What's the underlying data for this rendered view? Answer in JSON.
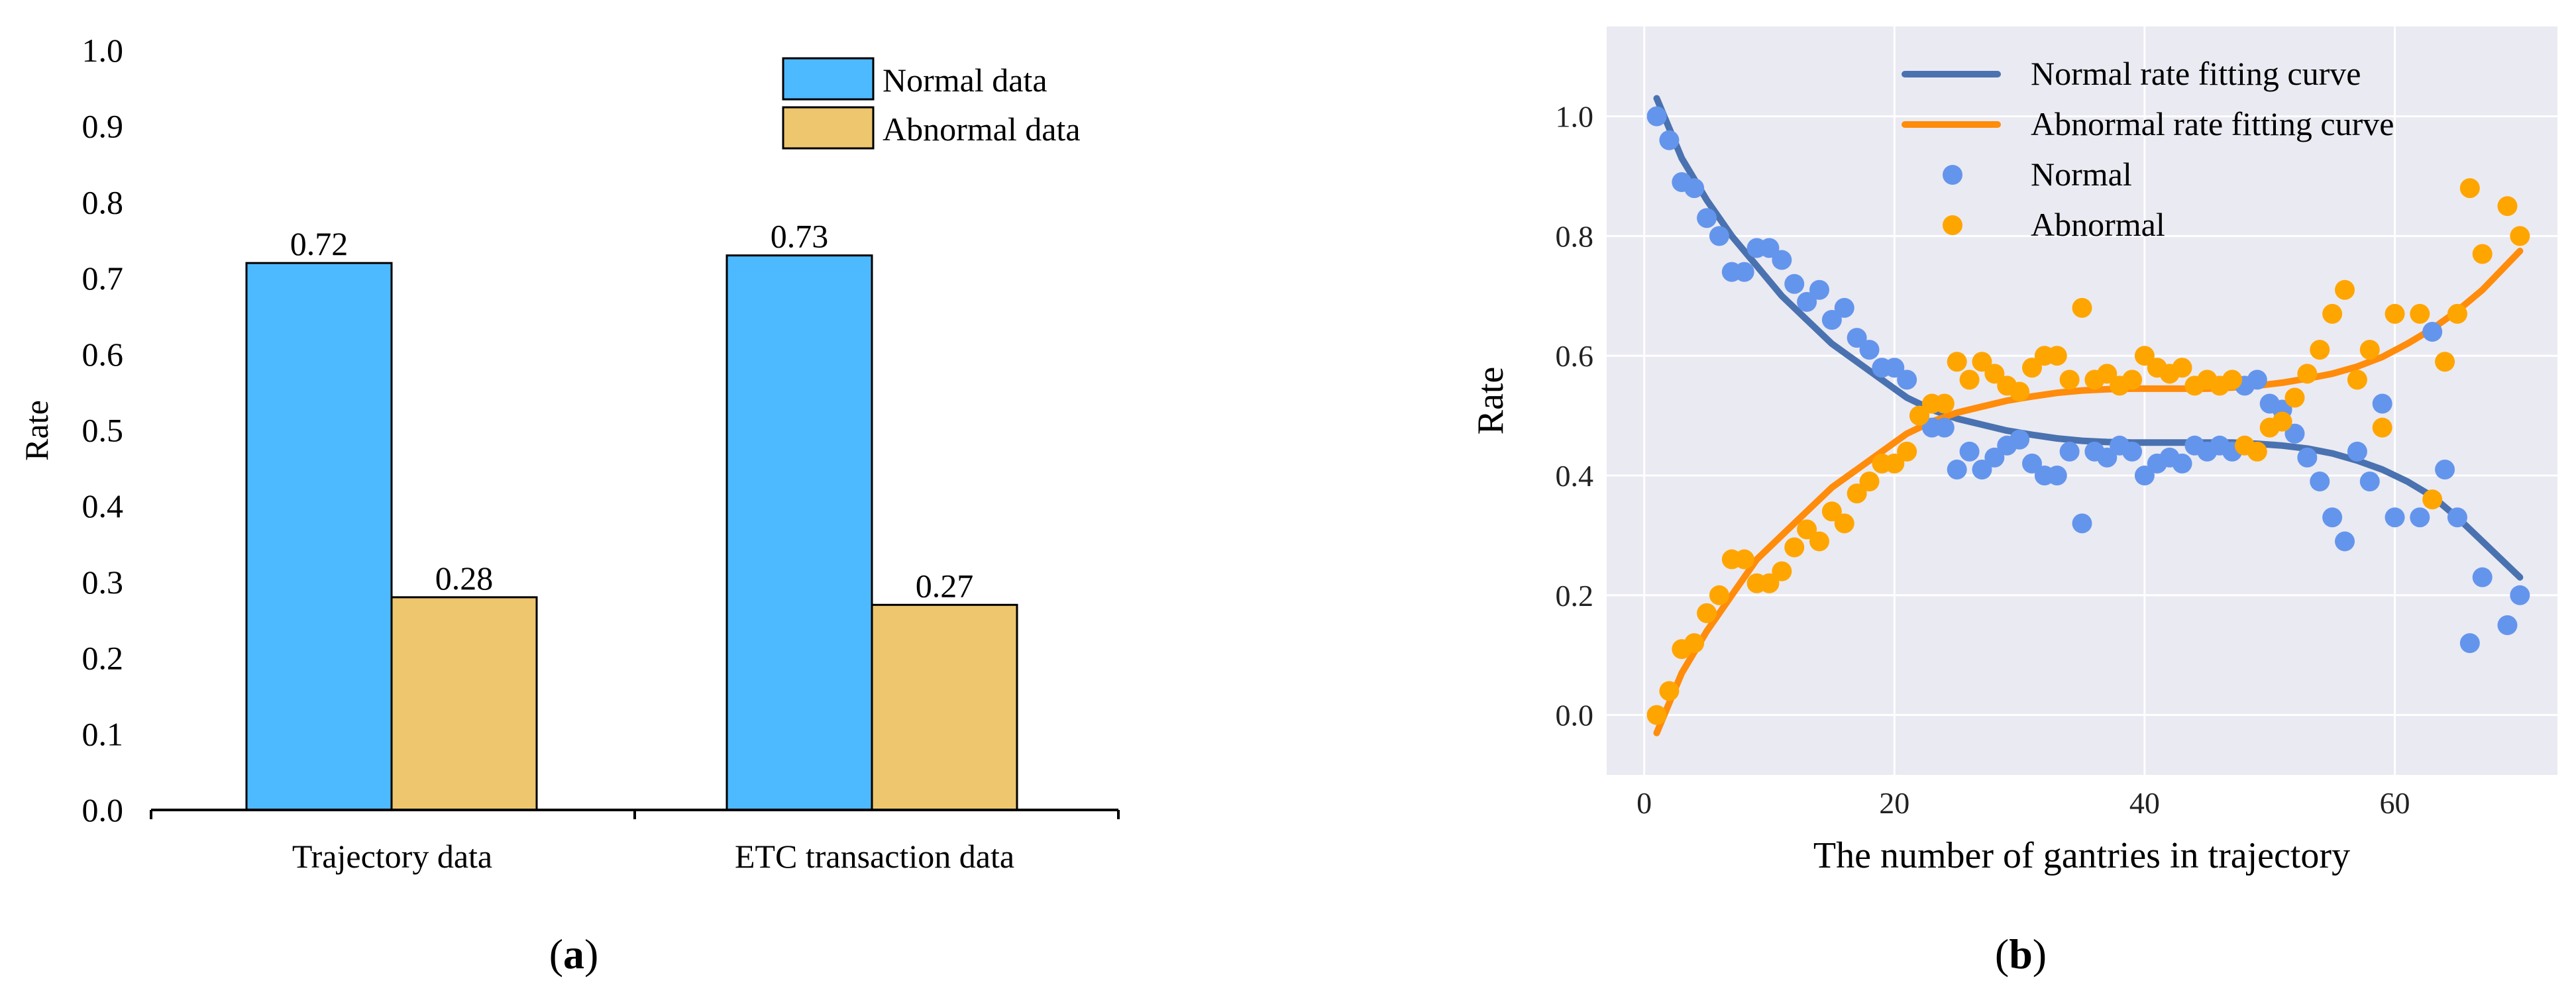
{
  "colors": {
    "normal_bar": "#4DB9FF",
    "abnormal_bar": "#EDC66E",
    "normal_curve": "#4A72B0",
    "abnormal_curve": "#FF8C0A",
    "normal_point": "#6495ED",
    "abnormal_point": "#FFA500",
    "panel_b_bg": "#EAEAF2"
  },
  "chart_data": [
    {
      "type": "bar",
      "panel_label": "a",
      "categories": [
        "Trajectory data",
        "ETC transaction data"
      ],
      "series": [
        {
          "name": "Normal data",
          "values": [
            0.72,
            0.73
          ],
          "labels": [
            "0.72",
            "0.73"
          ]
        },
        {
          "name": "Abnormal data",
          "values": [
            0.28,
            0.27
          ],
          "labels": [
            "0.28",
            "0.27"
          ]
        }
      ],
      "ylabel": "Rate",
      "ylim": [
        0,
        1.0
      ],
      "yticks": [
        0.0,
        0.1,
        0.2,
        0.3,
        0.4,
        0.5,
        0.6,
        0.7,
        0.8,
        0.9,
        1.0
      ],
      "ytick_labels": [
        "0.0",
        "0.1",
        "0.2",
        "0.3",
        "0.4",
        "0.5",
        "0.6",
        "0.7",
        "0.8",
        "0.9",
        "1.0"
      ],
      "legend": "top-right"
    },
    {
      "type": "scatter",
      "panel_label": "b",
      "xlabel": "The number of gantries in trajectory",
      "ylabel": "Rate",
      "xlim": [
        -3,
        73
      ],
      "ylim": [
        -0.1,
        1.15
      ],
      "xticks": [
        0,
        20,
        40,
        60
      ],
      "xtick_labels": [
        "0",
        "20",
        "40",
        "60"
      ],
      "yticks": [
        0.0,
        0.2,
        0.4,
        0.6,
        0.8,
        1.0
      ],
      "ytick_labels": [
        "0.0",
        "0.2",
        "0.4",
        "0.6",
        "0.8",
        "1.0"
      ],
      "grid": true,
      "legend": "top-right",
      "series": [
        {
          "name": "Normal rate fitting curve",
          "kind": "line",
          "x": [
            1,
            3,
            5,
            7,
            9,
            11,
            13,
            15,
            17,
            19,
            21,
            23,
            25,
            27,
            29,
            31,
            33,
            35,
            37,
            39,
            41,
            43,
            45,
            47,
            49,
            51,
            53,
            55,
            57,
            59,
            61,
            63,
            65,
            67,
            70
          ],
          "y": [
            1.03,
            0.93,
            0.86,
            0.8,
            0.75,
            0.7,
            0.66,
            0.62,
            0.59,
            0.56,
            0.53,
            0.51,
            0.495,
            0.485,
            0.475,
            0.468,
            0.462,
            0.458,
            0.456,
            0.455,
            0.455,
            0.455,
            0.455,
            0.455,
            0.453,
            0.45,
            0.445,
            0.437,
            0.425,
            0.41,
            0.39,
            0.365,
            0.33,
            0.29,
            0.23
          ]
        },
        {
          "name": "Abnormal rate fitting curve",
          "kind": "line",
          "x": [
            1,
            3,
            5,
            7,
            9,
            11,
            13,
            15,
            17,
            19,
            21,
            23,
            25,
            27,
            29,
            31,
            33,
            35,
            37,
            39,
            41,
            43,
            45,
            47,
            49,
            51,
            53,
            55,
            57,
            59,
            61,
            63,
            65,
            67,
            70
          ],
          "y": [
            -0.03,
            0.07,
            0.14,
            0.2,
            0.26,
            0.3,
            0.34,
            0.38,
            0.41,
            0.44,
            0.47,
            0.49,
            0.505,
            0.515,
            0.525,
            0.532,
            0.538,
            0.542,
            0.544,
            0.545,
            0.545,
            0.545,
            0.545,
            0.547,
            0.55,
            0.555,
            0.562,
            0.57,
            0.582,
            0.598,
            0.62,
            0.645,
            0.675,
            0.71,
            0.775
          ]
        },
        {
          "name": "Normal",
          "kind": "points",
          "x": [
            1,
            2,
            3,
            4,
            5,
            6,
            7,
            8,
            9,
            10,
            11,
            12,
            13,
            14,
            15,
            16,
            17,
            18,
            19,
            20,
            21,
            22,
            23,
            24,
            25,
            26,
            27,
            28,
            29,
            30,
            31,
            32,
            33,
            34,
            35,
            36,
            37,
            38,
            39,
            40,
            41,
            42,
            43,
            44,
            45,
            46,
            47,
            48,
            49,
            50,
            51,
            52,
            53,
            54,
            55,
            56,
            57,
            58,
            59,
            60,
            62,
            63,
            64,
            65,
            66,
            67,
            69,
            70
          ],
          "y": [
            1.0,
            0.96,
            0.89,
            0.88,
            0.83,
            0.8,
            0.74,
            0.74,
            0.78,
            0.78,
            0.76,
            0.72,
            0.69,
            0.71,
            0.66,
            0.68,
            0.63,
            0.61,
            0.58,
            0.58,
            0.56,
            0.5,
            0.48,
            0.48,
            0.41,
            0.44,
            0.41,
            0.43,
            0.45,
            0.46,
            0.42,
            0.4,
            0.4,
            0.44,
            0.32,
            0.44,
            0.43,
            0.45,
            0.44,
            0.4,
            0.42,
            0.43,
            0.42,
            0.45,
            0.44,
            0.45,
            0.44,
            0.55,
            0.56,
            0.52,
            0.51,
            0.47,
            0.43,
            0.39,
            0.33,
            0.29,
            0.44,
            0.39,
            0.52,
            0.33,
            0.33,
            0.64,
            0.41,
            0.33,
            0.12,
            0.23,
            0.15,
            0.2
          ]
        },
        {
          "name": "Abnormal",
          "kind": "points",
          "x": [
            1,
            2,
            3,
            4,
            5,
            6,
            7,
            8,
            9,
            10,
            11,
            12,
            13,
            14,
            15,
            16,
            17,
            18,
            19,
            20,
            21,
            22,
            23,
            24,
            25,
            26,
            27,
            28,
            29,
            30,
            31,
            32,
            33,
            34,
            35,
            36,
            37,
            38,
            39,
            40,
            41,
            42,
            43,
            44,
            45,
            46,
            47,
            48,
            49,
            50,
            51,
            52,
            53,
            54,
            55,
            56,
            57,
            58,
            59,
            60,
            62,
            63,
            64,
            65,
            66,
            67,
            69,
            70
          ],
          "y": [
            0.0,
            0.04,
            0.11,
            0.12,
            0.17,
            0.2,
            0.26,
            0.26,
            0.22,
            0.22,
            0.24,
            0.28,
            0.31,
            0.29,
            0.34,
            0.32,
            0.37,
            0.39,
            0.42,
            0.42,
            0.44,
            0.5,
            0.52,
            0.52,
            0.59,
            0.56,
            0.59,
            0.57,
            0.55,
            0.54,
            0.58,
            0.6,
            0.6,
            0.56,
            0.68,
            0.56,
            0.57,
            0.55,
            0.56,
            0.6,
            0.58,
            0.57,
            0.58,
            0.55,
            0.56,
            0.55,
            0.56,
            0.45,
            0.44,
            0.48,
            0.49,
            0.53,
            0.57,
            0.61,
            0.67,
            0.71,
            0.56,
            0.61,
            0.48,
            0.67,
            0.67,
            0.36,
            0.59,
            0.67,
            0.88,
            0.77,
            0.85,
            0.8
          ]
        }
      ]
    }
  ]
}
